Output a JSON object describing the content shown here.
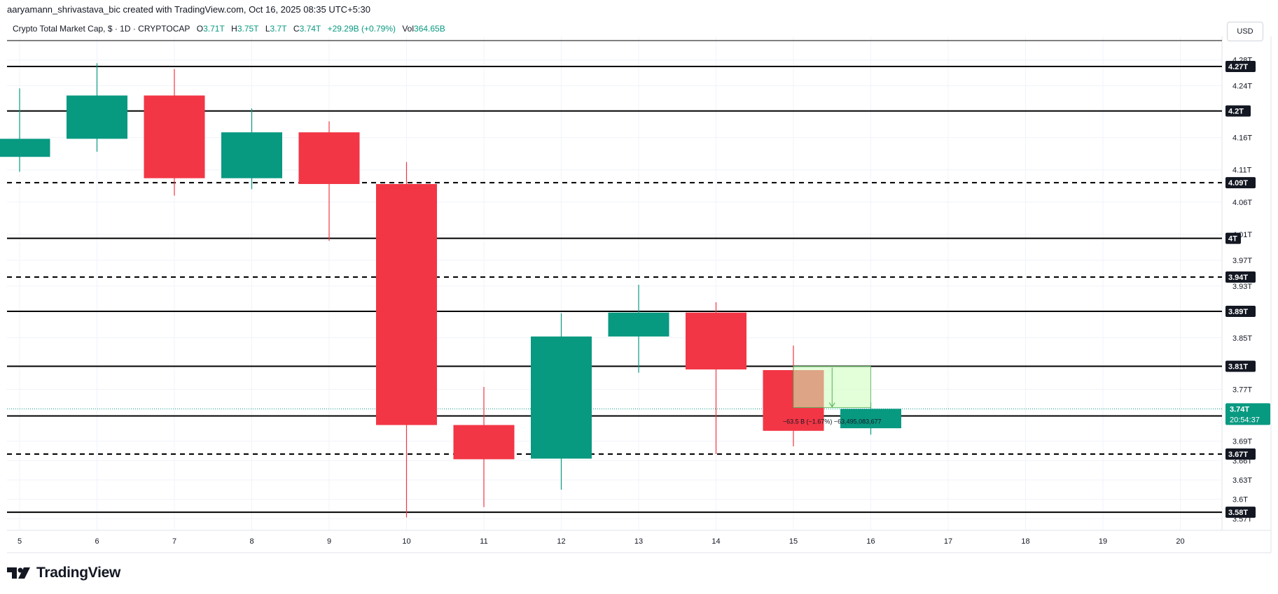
{
  "header": {
    "credit": "aaryamann_shrivastava_bic created with TradingView.com, Oct 16, 2025 08:35 UTC+5:30",
    "symbol": "Crypto Total Market Cap, $ · 1D · CRYPTOCAP",
    "open_label": "O",
    "open": "3.71T",
    "high_label": "H",
    "high": "3.75T",
    "low_label": "L",
    "low": "3.7T",
    "close_label": "C",
    "close": "3.74T",
    "change": "+29.29B (+0.79%)",
    "vol_label": "Vol",
    "vol": "364.65B"
  },
  "currency": "USD",
  "brand": "TradingView",
  "colors": {
    "up": "#089981",
    "down": "#f23645",
    "line": "#000000",
    "grid": "#f0f3fa",
    "label_bg": "#131722",
    "measure_fill": "#ccffbb",
    "measure_stroke": "#4caf50"
  },
  "chart_data": {
    "type": "candlestick",
    "title": "Crypto Total Market Cap",
    "x_ticks": [
      "5",
      "6",
      "7",
      "8",
      "9",
      "10",
      "11",
      "12",
      "13",
      "14",
      "15",
      "16",
      "17",
      "18",
      "19",
      "20"
    ],
    "y_ticks": [
      "4.28T",
      "4.24T",
      "4.16T",
      "4.11T",
      "4.06T",
      "4.01T",
      "3.97T",
      "3.93T",
      "3.85T",
      "3.77T",
      "3.69T",
      "3.66T",
      "3.63T",
      "3.6T",
      "3.57T"
    ],
    "ylim": [
      3.565,
      4.31
    ],
    "candles": [
      {
        "day": 5,
        "open": 4.13,
        "high": 4.236,
        "low": 4.107,
        "close": 4.158
      },
      {
        "day": 6,
        "open": 4.158,
        "high": 4.275,
        "low": 4.138,
        "close": 4.225
      },
      {
        "day": 7,
        "open": 4.225,
        "high": 4.266,
        "low": 4.07,
        "close": 4.097
      },
      {
        "day": 8,
        "open": 4.097,
        "high": 4.205,
        "low": 4.08,
        "close": 4.168
      },
      {
        "day": 9,
        "open": 4.168,
        "high": 4.185,
        "low": 4.0,
        "close": 4.088
      },
      {
        "day": 10,
        "open": 4.088,
        "high": 4.122,
        "low": 3.572,
        "close": 3.715
      },
      {
        "day": 11,
        "open": 3.715,
        "high": 3.774,
        "low": 3.588,
        "close": 3.662
      },
      {
        "day": 12,
        "open": 3.663,
        "high": 3.888,
        "low": 3.615,
        "close": 3.852
      },
      {
        "day": 13,
        "open": 3.852,
        "high": 3.932,
        "low": 3.796,
        "close": 3.889
      },
      {
        "day": 14,
        "open": 3.889,
        "high": 3.905,
        "low": 3.67,
        "close": 3.801
      },
      {
        "day": 15,
        "open": 3.8,
        "high": 3.838,
        "low": 3.682,
        "close": 3.706
      },
      {
        "day": 16,
        "open": 3.71,
        "high": 3.75,
        "low": 3.7,
        "close": 3.74
      }
    ],
    "horizontal_lines": [
      {
        "label": "4.27T",
        "value": 4.27,
        "style": "solid"
      },
      {
        "label": "4.2T",
        "value": 4.201,
        "style": "solid"
      },
      {
        "label": "4.09T",
        "value": 4.09,
        "style": "dashed"
      },
      {
        "label": "4T",
        "value": 4.004,
        "style": "solid"
      },
      {
        "label": "3.94T",
        "value": 3.944,
        "style": "dashed"
      },
      {
        "label": "3.89T",
        "value": 3.891,
        "style": "solid"
      },
      {
        "label": "3.81T",
        "value": 3.806,
        "style": "solid"
      },
      {
        "label": "3.73T",
        "value": 3.729,
        "style": "solid"
      },
      {
        "label": "3.67T",
        "value": 3.67,
        "style": "dashed"
      },
      {
        "label": "3.58T",
        "value": 3.58,
        "style": "solid"
      }
    ],
    "last_price": {
      "label": "3.74T",
      "value": 3.74,
      "countdown": "20:54:37"
    },
    "measurement": {
      "day_start": 15,
      "day_end": 16,
      "from": 3.806,
      "to": 3.742,
      "text": "−63.5 B (−1.67%) −63,495,083,677"
    }
  }
}
